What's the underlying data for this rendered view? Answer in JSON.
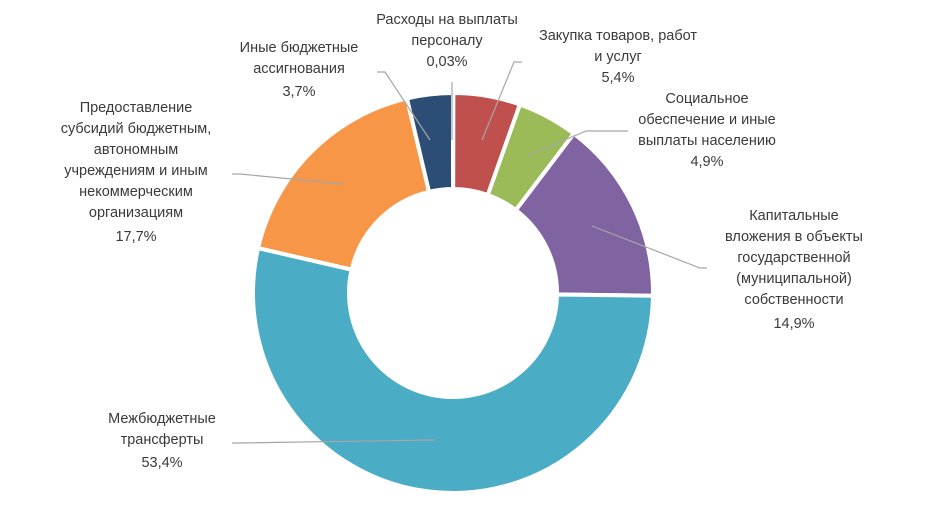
{
  "chart_data": {
    "type": "pie",
    "style": "donut",
    "slices": [
      {
        "label": "Расходы на выплаты персоналу",
        "value": 0.03,
        "value_label": "0,03%",
        "color": "#4472C4"
      },
      {
        "label": "Закупка товаров, работ и услуг",
        "value": 5.4,
        "value_label": "5,4%",
        "color": "#C0504D"
      },
      {
        "label": "Социальное обеспечение и иные выплаты населению",
        "value": 4.9,
        "value_label": "4,9%",
        "color": "#9BBB59"
      },
      {
        "label": "Капитальные вложения в объекты государственной (муниципальной) собственности",
        "value": 14.9,
        "value_label": "14,9%",
        "color": "#8064A2"
      },
      {
        "label": "Межбюджетные трансферты",
        "value": 53.4,
        "value_label": "53,4%",
        "color": "#4BACC6"
      },
      {
        "label": "Предоставление субсидий бюджетным, автономным учреждениям и иным некоммерческим организациям",
        "value": 17.7,
        "value_label": "17,7%",
        "color": "#F79646"
      },
      {
        "label": "Иные бюджетные ассигнования",
        "value": 3.7,
        "value_label": "3,7%",
        "color": "#2C4D75"
      }
    ],
    "legend": "none",
    "labels": "outside with leader lines"
  }
}
